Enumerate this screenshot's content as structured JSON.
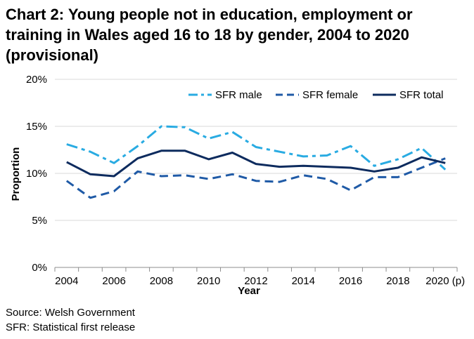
{
  "chart_data": {
    "type": "line",
    "title": "Chart 2: Young people not in education, employment or training in Wales aged 16 to 18 by gender, 2004 to 2020 (provisional)",
    "xlabel": "Year",
    "ylabel": "Proportion",
    "x": [
      2004,
      2005,
      2006,
      2007,
      2008,
      2009,
      2010,
      2011,
      2012,
      2013,
      2014,
      2015,
      2016,
      2017,
      2018,
      2019,
      2020
    ],
    "x_tick_labels": [
      "2004",
      "2006",
      "2008",
      "2010",
      "2012",
      "2014",
      "2016",
      "2018",
      "2020 (p)"
    ],
    "x_tick_values": [
      2004,
      2006,
      2008,
      2010,
      2012,
      2014,
      2016,
      2018,
      2020
    ],
    "ylim": [
      0,
      20
    ],
    "y_ticks": [
      0,
      5,
      10,
      15,
      20
    ],
    "y_tick_labels": [
      "0%",
      "5%",
      "10%",
      "15%",
      "20%"
    ],
    "grid": true,
    "legend_position": "top-right",
    "series": [
      {
        "name": "SFR male",
        "style": "dash-dot",
        "color": "#29abe2",
        "values": [
          13.1,
          12.3,
          11.1,
          12.9,
          15.0,
          14.9,
          13.7,
          14.4,
          12.8,
          12.3,
          11.8,
          11.9,
          12.9,
          10.8,
          11.5,
          12.7,
          10.4
        ]
      },
      {
        "name": "SFR female",
        "style": "dashed",
        "color": "#1f5aa6",
        "values": [
          9.2,
          7.4,
          8.1,
          10.2,
          9.7,
          9.8,
          9.4,
          9.9,
          9.2,
          9.1,
          9.8,
          9.4,
          8.2,
          9.6,
          9.6,
          10.6,
          11.6
        ]
      },
      {
        "name": "SFR total",
        "style": "solid",
        "color": "#0d2b5e",
        "values": [
          11.2,
          9.9,
          9.7,
          11.6,
          12.4,
          12.4,
          11.5,
          12.2,
          11.0,
          10.7,
          10.8,
          10.7,
          10.6,
          10.2,
          10.6,
          11.7,
          11.1
        ]
      }
    ]
  },
  "footnotes": {
    "source": "Source: Welsh Government",
    "sfr": "SFR: Statistical first release"
  }
}
